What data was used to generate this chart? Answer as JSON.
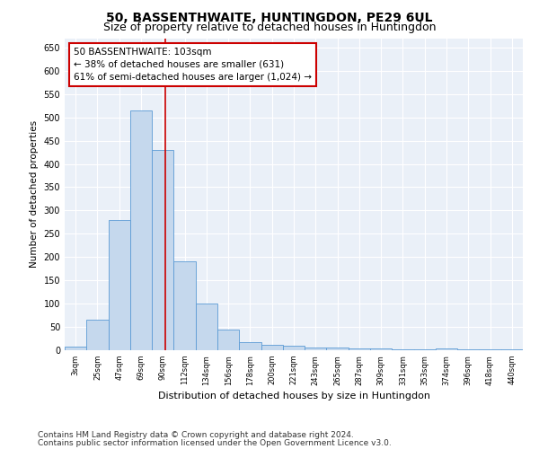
{
  "title": "50, BASSENTHWAITE, HUNTINGDON, PE29 6UL",
  "subtitle": "Size of property relative to detached houses in Huntingdon",
  "xlabel": "Distribution of detached houses by size in Huntingdon",
  "ylabel": "Number of detached properties",
  "categories": [
    "3sqm",
    "25sqm",
    "47sqm",
    "69sqm",
    "90sqm",
    "112sqm",
    "134sqm",
    "156sqm",
    "178sqm",
    "200sqm",
    "221sqm",
    "243sqm",
    "265sqm",
    "287sqm",
    "309sqm",
    "331sqm",
    "353sqm",
    "374sqm",
    "396sqm",
    "418sqm",
    "440sqm"
  ],
  "values": [
    8,
    65,
    280,
    515,
    430,
    190,
    100,
    45,
    17,
    12,
    10,
    6,
    5,
    4,
    3,
    2,
    1,
    4,
    1,
    2,
    1
  ],
  "bar_color": "#c5d8ed",
  "bar_edge_color": "#5b9bd5",
  "annotation_text_line1": "50 BASSENTHWAITE: 103sqm",
  "annotation_text_line2": "← 38% of detached houses are smaller (631)",
  "annotation_text_line3": "61% of semi-detached houses are larger (1,024) →",
  "annotation_box_color": "#ffffff",
  "annotation_box_edge_color": "#cc0000",
  "annotation_fontsize": 7.5,
  "red_line_color": "#cc0000",
  "background_color": "#eaf0f8",
  "grid_color": "#ffffff",
  "ylim": [
    0,
    670
  ],
  "yticks": [
    0,
    50,
    100,
    150,
    200,
    250,
    300,
    350,
    400,
    450,
    500,
    550,
    600,
    650
  ],
  "footer_line1": "Contains HM Land Registry data © Crown copyright and database right 2024.",
  "footer_line2": "Contains public sector information licensed under the Open Government Licence v3.0.",
  "footer_fontsize": 6.5,
  "title_fontsize": 10,
  "subtitle_fontsize": 9
}
